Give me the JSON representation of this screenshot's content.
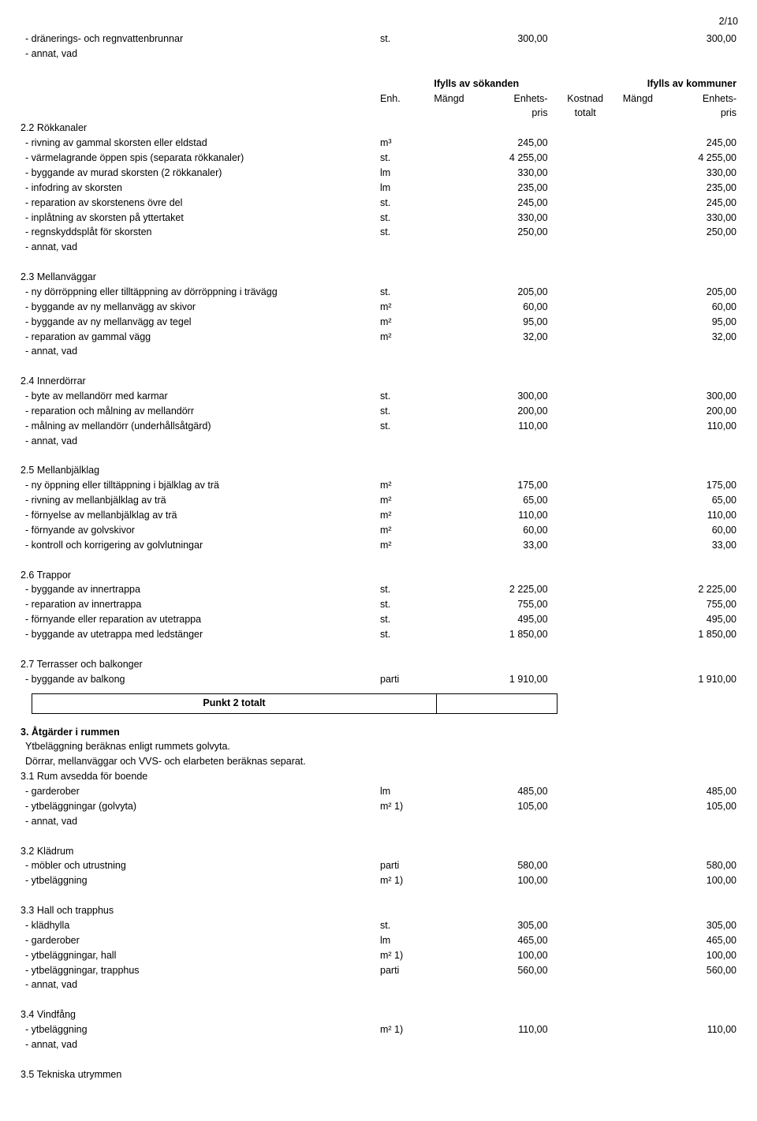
{
  "page_number": "2/10",
  "header": {
    "sokanden": "Ifylls av sökanden",
    "kommuner": "Ifylls av kommuner",
    "enh": "Enh.",
    "mangd": "Mängd",
    "enhets": "Enhets-",
    "pris": "pris",
    "kostnad": "Kostnad",
    "totalt": "totalt"
  },
  "intro_row": {
    "desc": "- dränerings- och regnvattenbrunnar",
    "unit": "st.",
    "p1": "300,00",
    "p2": "300,00"
  },
  "annat": "- annat, vad",
  "s22": {
    "title": "2.2 Rökkanaler",
    "rows": [
      {
        "desc": "- rivning av gammal skorsten eller eldstad",
        "unit": "m³",
        "p1": "245,00",
        "p2": "245,00"
      },
      {
        "desc": "- värmelagrande öppen spis (separata rökkanaler)",
        "unit": "st.",
        "p1": "4 255,00",
        "p2": "4 255,00"
      },
      {
        "desc": "- byggande av murad skorsten (2 rökkanaler)",
        "unit": "lm",
        "p1": "330,00",
        "p2": "330,00"
      },
      {
        "desc": "- infodring av skorsten",
        "unit": "lm",
        "p1": "235,00",
        "p2": "235,00"
      },
      {
        "desc": "- reparation av skorstenens övre del",
        "unit": "st.",
        "p1": "245,00",
        "p2": "245,00"
      },
      {
        "desc": "- inplåtning av skorsten på yttertaket",
        "unit": "st.",
        "p1": "330,00",
        "p2": "330,00"
      },
      {
        "desc": "- regnskyddsplåt för skorsten",
        "unit": "st.",
        "p1": "250,00",
        "p2": "250,00"
      }
    ]
  },
  "s23": {
    "title": "2.3 Mellanväggar",
    "rows": [
      {
        "desc": "- ny dörröppning eller tilltäppning av dörröppning i trävägg",
        "unit": "st.",
        "p1": "205,00",
        "p2": "205,00"
      },
      {
        "desc": "- byggande av ny mellanvägg av skivor",
        "unit": "m²",
        "p1": "60,00",
        "p2": "60,00"
      },
      {
        "desc": "- byggande av ny mellanvägg av tegel",
        "unit": "m²",
        "p1": "95,00",
        "p2": "95,00"
      },
      {
        "desc": "- reparation av gammal vägg",
        "unit": "m²",
        "p1": "32,00",
        "p2": "32,00"
      }
    ]
  },
  "s24": {
    "title": "2.4 Innerdörrar",
    "rows": [
      {
        "desc": "- byte av mellandörr med karmar",
        "unit": "st.",
        "p1": "300,00",
        "p2": "300,00"
      },
      {
        "desc": "- reparation och målning av mellandörr",
        "unit": "st.",
        "p1": "200,00",
        "p2": "200,00"
      },
      {
        "desc": "- målning av mellandörr (underhållsåtgärd)",
        "unit": "st.",
        "p1": "110,00",
        "p2": "110,00"
      }
    ]
  },
  "s25": {
    "title": "2.5 Mellanbjälklag",
    "rows": [
      {
        "desc": "- ny öppning eller tilltäppning i bjälklag av trä",
        "unit": "m²",
        "p1": "175,00",
        "p2": "175,00"
      },
      {
        "desc": "- rivning av mellanbjälklag av trä",
        "unit": "m²",
        "p1": "65,00",
        "p2": "65,00"
      },
      {
        "desc": "- förnyelse av mellanbjälklag av trä",
        "unit": "m²",
        "p1": "110,00",
        "p2": "110,00"
      },
      {
        "desc": "- förnyande av golvskivor",
        "unit": "m²",
        "p1": "60,00",
        "p2": "60,00"
      },
      {
        "desc": "- kontroll och korrigering av golvlutningar",
        "unit": "m²",
        "p1": "33,00",
        "p2": "33,00"
      }
    ]
  },
  "s26": {
    "title": "2.6 Trappor",
    "rows": [
      {
        "desc": "- byggande av innertrappa",
        "unit": "st.",
        "p1": "2 225,00",
        "p2": "2 225,00"
      },
      {
        "desc": "- reparation av innertrappa",
        "unit": "st.",
        "p1": "755,00",
        "p2": "755,00"
      },
      {
        "desc": "- förnyande eller reparation av utetrappa",
        "unit": "st.",
        "p1": "495,00",
        "p2": "495,00"
      },
      {
        "desc": "- byggande av utetrappa med ledstänger",
        "unit": "st.",
        "p1": "1 850,00",
        "p2": "1 850,00"
      }
    ]
  },
  "s27": {
    "title": "2.7 Terrasser och balkonger",
    "rows": [
      {
        "desc": "- byggande av balkong",
        "unit": "parti",
        "p1": "1 910,00",
        "p2": "1 910,00"
      }
    ]
  },
  "punkt2": "Punkt 2 totalt",
  "s3": {
    "title": "3. Åtgärder i rummen",
    "sub1": "Ytbeläggning beräknas enligt rummets golvyta.",
    "sub2": "Dörrar, mellanväggar och VVS- och elarbeten beräknas separat."
  },
  "s31": {
    "title": "3.1 Rum avsedda för boende",
    "rows": [
      {
        "desc": "- garderober",
        "unit": "lm",
        "p1": "485,00",
        "p2": "485,00"
      },
      {
        "desc": "- ytbeläggningar (golvyta)",
        "unit": "m² 1)",
        "p1": "105,00",
        "p2": "105,00"
      }
    ]
  },
  "s32": {
    "title": "3.2 Klädrum",
    "rows": [
      {
        "desc": "- möbler och utrustning",
        "unit": "parti",
        "p1": "580,00",
        "p2": "580,00"
      },
      {
        "desc": "- ytbeläggning",
        "unit": "m² 1)",
        "p1": "100,00",
        "p2": "100,00"
      }
    ]
  },
  "s33": {
    "title": "3.3 Hall och trapphus",
    "rows": [
      {
        "desc": "- klädhylla",
        "unit": "st.",
        "p1": "305,00",
        "p2": "305,00"
      },
      {
        "desc": "- garderober",
        "unit": "lm",
        "p1": "465,00",
        "p2": "465,00"
      },
      {
        "desc": "- ytbeläggningar, hall",
        "unit": "m² 1)",
        "p1": "100,00",
        "p2": "100,00"
      },
      {
        "desc": "- ytbeläggningar, trapphus",
        "unit": "parti",
        "p1": "560,00",
        "p2": "560,00"
      }
    ]
  },
  "s34": {
    "title": "3.4 Vindfång",
    "rows": [
      {
        "desc": "- ytbeläggning",
        "unit": "m² 1)",
        "p1": "110,00",
        "p2": "110,00"
      }
    ]
  },
  "s35": {
    "title": "3.5 Tekniska utrymmen"
  }
}
